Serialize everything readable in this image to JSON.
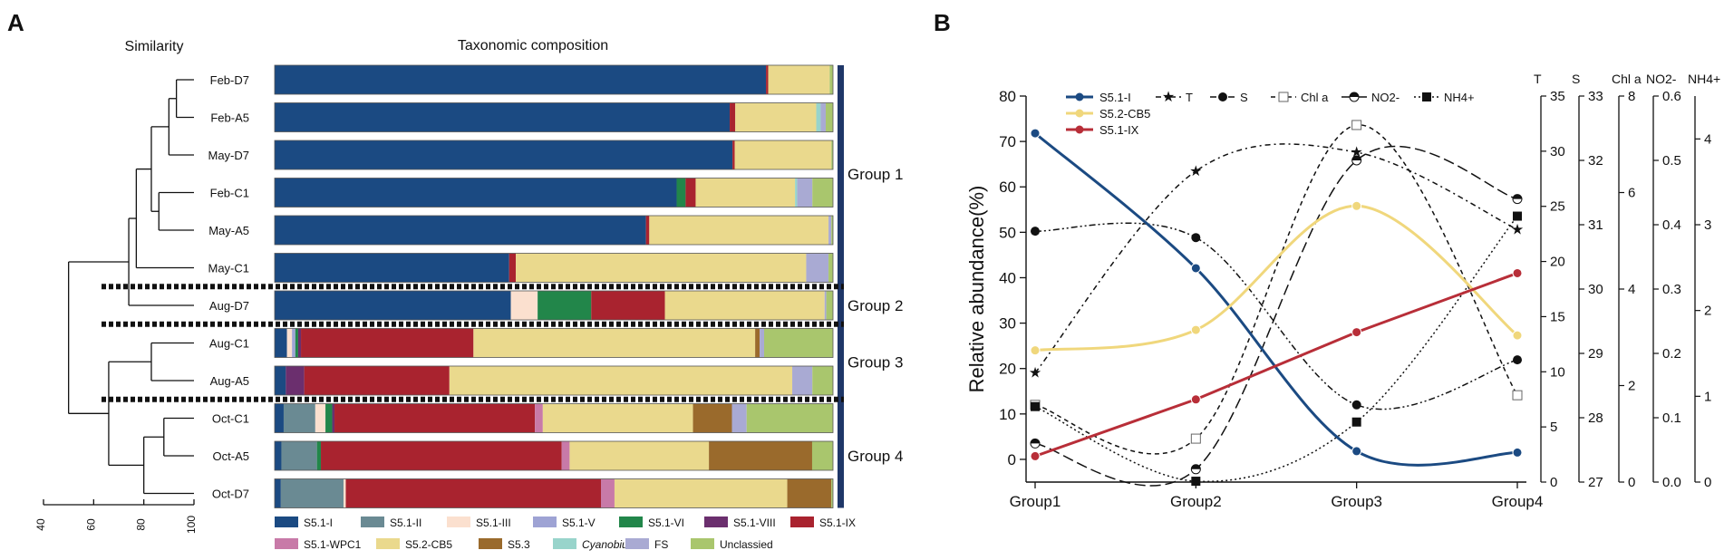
{
  "panel_a": {
    "label": "A",
    "similarity_title": "Similarity",
    "composition_title": "Taxonomic composition",
    "colors": {
      "S5.1-I": "#1b4a82",
      "S5.1-II": "#6a8a93",
      "S5.1-III": "#fbe0cf",
      "S5.1-V": "#9ea3d4",
      "S5.1-VI": "#22864a",
      "S5.1-VIII": "#6b2f6e",
      "S5.1-IX": "#a9232f",
      "S5.1-WPC1": "#c87aa8",
      "S5.2-CB5": "#ead98d",
      "S5.3": "#9a6a2c",
      "Cyanobium": "#98d4cb",
      "FS": "#a9aad3",
      "Unclassied": "#a9c66d"
    },
    "chart_data": {
      "type": "stacked-bar-horizontal",
      "title": "Taxonomic composition",
      "categories": [
        "Feb-D7",
        "Feb-A5",
        "May-D7",
        "Feb-C1",
        "May-A5",
        "May-C1",
        "Aug-D7",
        "Aug-C1",
        "Aug-A5",
        "Oct-C1",
        "Oct-A5",
        "Oct-D7"
      ],
      "series_names": [
        "S5.1-I",
        "S5.1-II",
        "S5.1-III",
        "S5.1-V",
        "S5.1-VI",
        "S5.1-VIII",
        "S5.1-IX",
        "S5.1-WPC1",
        "S5.2-CB5",
        "S5.3",
        "Cyanobium",
        "FS",
        "Unclassied"
      ],
      "values": [
        [
          88.0,
          0,
          0,
          0,
          0,
          0,
          0.4,
          0,
          11.0,
          0,
          0,
          0,
          0.6
        ],
        [
          81.5,
          0,
          0,
          0,
          0,
          0,
          1.0,
          0,
          14.5,
          0,
          0.8,
          0.9,
          1.3
        ],
        [
          82.0,
          0,
          0,
          0,
          0,
          0,
          0.4,
          0,
          17.3,
          0,
          0,
          0,
          0.3
        ],
        [
          72.0,
          0,
          0,
          0,
          1.6,
          0,
          1.8,
          0,
          17.8,
          0,
          0.4,
          2.7,
          3.7
        ],
        [
          66.5,
          0,
          0,
          0,
          0,
          0,
          0.6,
          0,
          32.1,
          0,
          0,
          0.5,
          0.3
        ],
        [
          42.0,
          0,
          0,
          0,
          0,
          0,
          1.2,
          0,
          52.0,
          0,
          0,
          4.0,
          0.8
        ],
        [
          42.3,
          0,
          4.8,
          0,
          9.6,
          0,
          13.2,
          0,
          28.6,
          0,
          0,
          0.3,
          1.2
        ],
        [
          2.2,
          0,
          0.9,
          0.6,
          0.5,
          0.5,
          30.8,
          0,
          50.3,
          0.8,
          0,
          0.8,
          12.3
        ],
        [
          2.0,
          0,
          0,
          0,
          0,
          3.3,
          26.0,
          0,
          61.4,
          0,
          0,
          3.6,
          3.7
        ],
        [
          1.6,
          5.6,
          1.8,
          0,
          1.2,
          0.4,
          35.5,
          1.4,
          26.6,
          6.9,
          0,
          2.6,
          15.3
        ],
        [
          1.2,
          6.3,
          0,
          0,
          0.7,
          0,
          42.7,
          1.4,
          24.7,
          18.3,
          0,
          0,
          3.7
        ],
        [
          1.1,
          11.1,
          0.4,
          0,
          0,
          0,
          45.2,
          2.4,
          30.6,
          7.8,
          0,
          0,
          0.3
        ]
      ],
      "groups": [
        {
          "name": "Group 1",
          "start": 0,
          "end": 5
        },
        {
          "name": "Group 2",
          "start": 6,
          "end": 6
        },
        {
          "name": "Group 3",
          "start": 7,
          "end": 8
        },
        {
          "name": "Group 4",
          "start": 9,
          "end": 11
        }
      ],
      "dendrogram_axis": {
        "ticks": [
          40,
          60,
          80,
          100
        ]
      }
    },
    "legend": [
      "S5.1-I",
      "S5.1-II",
      "S5.1-III",
      "S5.1-V",
      "S5.1-VI",
      "S5.1-VIII",
      "S5.1-IX",
      "S5.1-WPC1",
      "S5.2-CB5",
      "S5.3",
      "Cyanobium",
      "FS",
      "Unclassied"
    ]
  },
  "panel_b": {
    "label": "B",
    "colors": {
      "S5.1-I": "#1b4a82",
      "S5.2-CB5": "#f0d77c",
      "S5.1-IX": "#b82e38",
      "env": "#111111"
    },
    "chart_data": {
      "type": "line",
      "ylabel": "Relative abundance(%)",
      "ylim": [
        -5,
        80
      ],
      "yticks": [
        0,
        10,
        20,
        30,
        40,
        50,
        60,
        70,
        80
      ],
      "categories": [
        "Group1",
        "Group2",
        "Group3",
        "Group4"
      ],
      "series": [
        {
          "name": "S5.1-I",
          "values": [
            71.8,
            42.1,
            1.8,
            1.5
          ]
        },
        {
          "name": "S5.2-CB5",
          "values": [
            24.0,
            28.5,
            55.8,
            27.3
          ]
        },
        {
          "name": "S5.1-IX",
          "values": [
            0.7,
            13.2,
            28.0,
            41.0
          ]
        }
      ],
      "env_series": [
        {
          "name": "T",
          "axis": "T",
          "values": [
            9.9,
            28.2,
            29.9,
            22.9
          ],
          "style": "dash-dot-wide",
          "marker": "star"
        },
        {
          "name": "S",
          "axis": "S",
          "values": [
            30.9,
            30.8,
            28.2,
            28.9
          ],
          "style": "dash-dot-dot",
          "marker": "circle"
        },
        {
          "name": "Chl a",
          "axis": "Chl a",
          "values": [
            1.6,
            0.9,
            7.4,
            1.8
          ],
          "style": "dash",
          "marker": "square-open"
        },
        {
          "name": "NO2-",
          "axis": "NO2-",
          "values": [
            0.06,
            0.02,
            0.5,
            0.44
          ],
          "style": "long-dash",
          "marker": "half-circle"
        },
        {
          "name": "NH4+",
          "axis": "NH4+",
          "values": [
            0.88,
            0.01,
            0.7,
            3.1
          ],
          "style": "dotted",
          "marker": "square"
        }
      ],
      "env_axes": [
        {
          "name": "T",
          "label": "T",
          "ylim": [
            0,
            35
          ],
          "ticks": [
            0,
            5,
            10,
            15,
            20,
            25,
            30,
            35
          ]
        },
        {
          "name": "S",
          "label": "S",
          "ylim": [
            27,
            33
          ],
          "ticks": [
            27,
            28,
            29,
            30,
            31,
            32,
            33
          ]
        },
        {
          "name": "Chl a",
          "label": "Chl a",
          "ylim": [
            0,
            8
          ],
          "ticks": [
            0,
            2,
            4,
            6,
            8
          ]
        },
        {
          "name": "NO2-",
          "label": "NO2-",
          "ylim": [
            0.0,
            0.6
          ],
          "ticks": [
            "0.0",
            "0.1",
            "0.2",
            "0.3",
            "0.4",
            "0.5",
            "0.6"
          ]
        },
        {
          "name": "NH4+",
          "label": "NH4+",
          "ylim": [
            0,
            4.5
          ],
          "ticks": [
            0,
            1,
            2,
            3,
            4
          ]
        }
      ],
      "legend": {
        "lines": [
          "S5.1-I",
          "S5.2-CB5",
          "S5.1-IX"
        ],
        "env": [
          "T",
          "S",
          "Chl a",
          "NO2-",
          "NH4+"
        ]
      }
    }
  }
}
